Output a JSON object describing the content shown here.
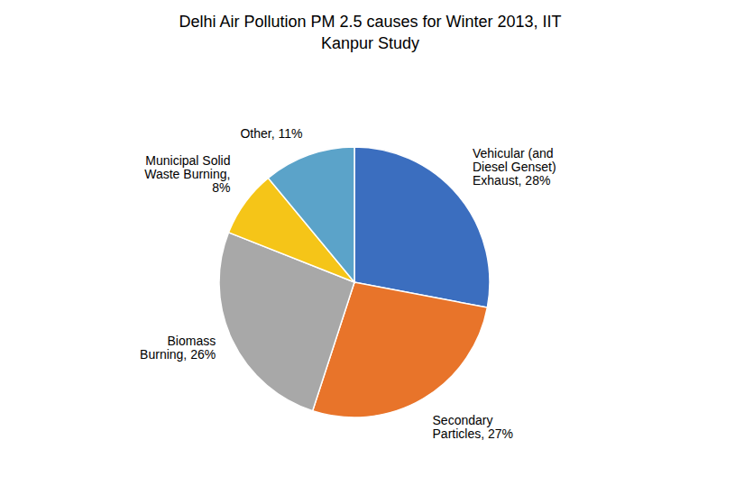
{
  "chart_data": {
    "type": "pie",
    "title": "Delhi Air Pollution PM 2.5 causes for Winter 2013, IIT\nKanpur Study",
    "categories": [
      "Vehicular (and\nDiesel Genset)\nExhaust, 28%",
      "Secondary\nParticles, 27%",
      "Biomass\nBurning, 26%",
      "Municipal Solid\nWaste Burning,\n8%",
      "Other, 11%"
    ],
    "values": [
      28,
      27,
      26,
      8,
      11
    ],
    "colors": [
      "#3B6EBF",
      "#E8742A",
      "#A8A8A8",
      "#F5C518",
      "#5BA3C9"
    ]
  }
}
